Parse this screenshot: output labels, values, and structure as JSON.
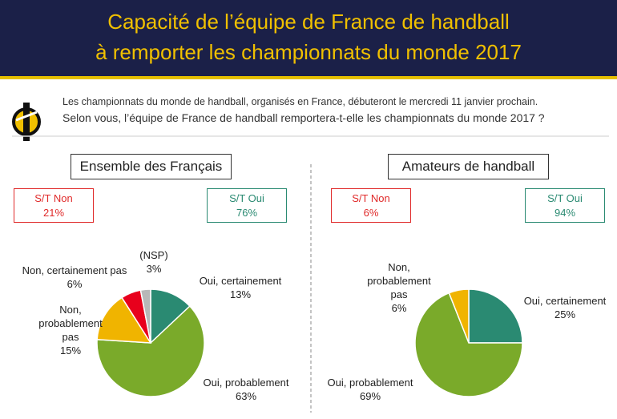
{
  "header": {
    "title_lines": [
      "Capacité de l’équipe de France de handball",
      "à remporter les championnats du monde 2017"
    ]
  },
  "intro": {
    "lines": [
      "Les championnats du monde de handball, organisés en France, débuteront le mercredi 11 janvier prochain.",
      "Selon vous, l’équipe de France de handball remportera-t-elle les championnats du monde 2017 ?"
    ]
  },
  "chart_data": [
    {
      "type": "pie",
      "title": "Ensemble des Français",
      "summary": {
        "labels": [
          "S/T Non",
          "S/T Oui"
        ],
        "values": [
          21,
          76
        ],
        "value_labels": [
          "21%",
          "76%"
        ],
        "colors": [
          "#e02a2a",
          "#2a8a72"
        ]
      },
      "categories": [
        "Oui, certainement",
        "Oui, probablement",
        "Non, probablement pas",
        "Non, certainement pas",
        "(NSP)"
      ],
      "values": [
        13,
        63,
        15,
        6,
        3
      ],
      "value_labels": [
        "13%",
        "63%",
        "15%",
        "6%",
        "3%"
      ],
      "colors": [
        "#2a8a72",
        "#7aaa2a",
        "#f0b400",
        "#e8001c",
        "#b8b8b8"
      ]
    },
    {
      "type": "pie",
      "title": "Amateurs de handball",
      "summary": {
        "labels": [
          "S/T Non",
          "S/T Oui"
        ],
        "values": [
          6,
          94
        ],
        "value_labels": [
          "6%",
          "94%"
        ],
        "colors": [
          "#e02a2a",
          "#2a8a72"
        ]
      },
      "categories": [
        "Oui, certainement",
        "Oui, probablement",
        "Non, probablement pas"
      ],
      "values": [
        25,
        69,
        6
      ],
      "value_labels": [
        "25%",
        "69%",
        "6%"
      ],
      "colors": [
        "#2a8a72",
        "#7aaa2a",
        "#f0b400"
      ]
    }
  ]
}
